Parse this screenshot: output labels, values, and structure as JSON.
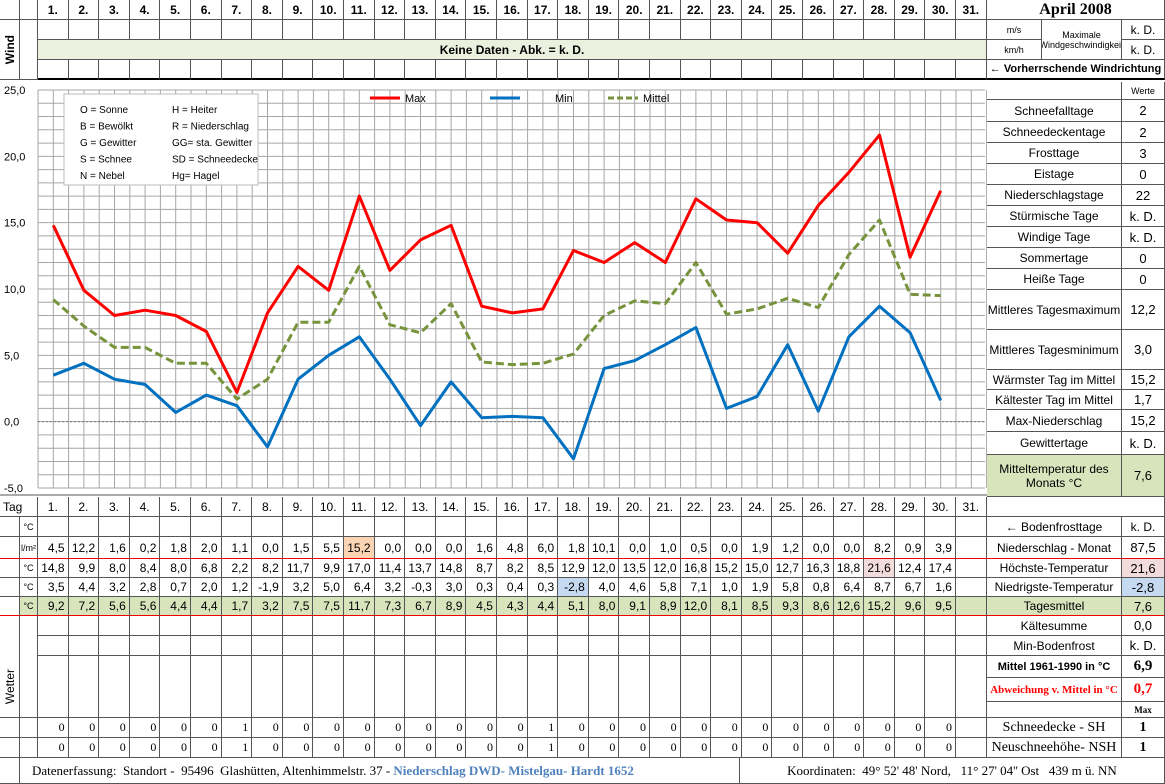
{
  "header": {
    "title": "April 2008",
    "days": [
      "1.",
      "2.",
      "3.",
      "4.",
      "5.",
      "6.",
      "7.",
      "8.",
      "9.",
      "10.",
      "11.",
      "12.",
      "13.",
      "14.",
      "15.",
      "16.",
      "17.",
      "18.",
      "19.",
      "20.",
      "21.",
      "22.",
      "23.",
      "24.",
      "25.",
      "26.",
      "27.",
      "28.",
      "29.",
      "30.",
      "31."
    ]
  },
  "wind": {
    "label": "Wind",
    "no_data": "Keine Daten - Abk. = k. D.",
    "unit_ms": "m/s",
    "unit_kmh": "km/h",
    "max_label": "Maximale Windgeschwindigkeit",
    "max_ms": "k. D.",
    "max_kmh": "k. D.",
    "direction_label": "← Vorherrschende Windrichtung"
  },
  "legend_box": {
    "left": [
      "O = Sonne",
      "B = Bewölkt",
      "G = Gewitter",
      "S = Schnee",
      "N = Nebel"
    ],
    "right": [
      "H = Heiter",
      "R = Niederschlag",
      "GG= sta. Gewitter",
      "SD = Schneedecke",
      "Hg= Hagel"
    ]
  },
  "chart_data": {
    "type": "line",
    "x": [
      1,
      2,
      3,
      4,
      5,
      6,
      7,
      8,
      9,
      10,
      11,
      12,
      13,
      14,
      15,
      16,
      17,
      18,
      19,
      20,
      21,
      22,
      23,
      24,
      25,
      26,
      27,
      28,
      29,
      30
    ],
    "ylim": [
      -5,
      25
    ],
    "yticks": [
      "25,0",
      "20,0",
      "15,0",
      "10,0",
      "5,0",
      "0,0",
      "-5,0"
    ],
    "ytick_values": [
      25,
      20,
      15,
      10,
      5,
      0,
      -5
    ],
    "legend_placement": "top",
    "series": [
      {
        "name": "Max",
        "color": "#ff0000",
        "dash": false,
        "values": [
          14.8,
          9.9,
          8.0,
          8.4,
          8.0,
          6.8,
          2.2,
          8.2,
          11.7,
          9.9,
          17.0,
          11.4,
          13.7,
          14.8,
          8.7,
          8.2,
          8.5,
          12.9,
          12.0,
          13.5,
          12.0,
          16.8,
          15.2,
          15.0,
          12.7,
          16.3,
          18.8,
          21.6,
          12.4,
          17.4
        ]
      },
      {
        "name": "Min",
        "color": "#0070c0",
        "dash": false,
        "values": [
          3.5,
          4.4,
          3.2,
          2.8,
          0.7,
          2.0,
          1.2,
          -1.9,
          3.2,
          5.0,
          6.4,
          3.2,
          -0.3,
          3.0,
          0.3,
          0.4,
          0.3,
          -2.8,
          4.0,
          4.6,
          5.8,
          7.1,
          1.0,
          1.9,
          5.8,
          0.8,
          6.4,
          8.7,
          6.7,
          1.6
        ]
      },
      {
        "name": "Mittel",
        "color": "#77933c",
        "dash": true,
        "values": [
          9.2,
          7.2,
          5.6,
          5.6,
          4.4,
          4.4,
          1.7,
          3.2,
          7.5,
          7.5,
          11.7,
          7.3,
          6.7,
          8.9,
          4.5,
          4.3,
          4.4,
          5.1,
          8.0,
          9.1,
          8.9,
          12.0,
          8.1,
          8.5,
          9.3,
          8.6,
          12.6,
          15.2,
          9.6,
          9.5
        ]
      }
    ]
  },
  "stats": {
    "values_header": "Werte",
    "rows": [
      {
        "label": "Schneefalltage",
        "value": "2"
      },
      {
        "label": "Schneedeckentage",
        "value": "2"
      },
      {
        "label": "Frosttage",
        "value": "3"
      },
      {
        "label": "Eistage",
        "value": "0"
      },
      {
        "label": "Niederschlagstage",
        "value": "22"
      },
      {
        "label": "Stürmische Tage",
        "value": "k. D."
      },
      {
        "label": "Windige Tage",
        "value": "k. D."
      },
      {
        "label": "Sommertage",
        "value": "0"
      },
      {
        "label": "Heiße Tage",
        "value": "0"
      },
      {
        "label": "Mittleres Tagesmaximum",
        "value": "12,2"
      },
      {
        "label": "Mittleres Tagesminimum",
        "value": "3,0"
      },
      {
        "label": "Wärmster Tag im Mittel",
        "value": "15,2"
      },
      {
        "label": "Kältester Tag im Mittel",
        "value": "1,7"
      },
      {
        "label": "Max-Niederschlag",
        "value": "15,2"
      },
      {
        "label": "Gewittertage",
        "value": "k. D."
      },
      {
        "label": "Mitteltemperatur des Monats °C",
        "value": "7,6"
      }
    ]
  },
  "table": {
    "tag_label": "Tag",
    "soil_unit": "°C",
    "rows": [
      {
        "unit": "l/m²",
        "label": "Niederschlag - Monat",
        "total": "87,5",
        "values": [
          "4,5",
          "12,2",
          "1,6",
          "0,2",
          "1,8",
          "2,0",
          "1,1",
          "0,0",
          "1,5",
          "5,5",
          "15,2",
          "0,0",
          "0,0",
          "0,0",
          "1,6",
          "4,8",
          "6,0",
          "1,8",
          "10,1",
          "0,0",
          "1,0",
          "0,5",
          "0,0",
          "1,9",
          "1,2",
          "0,0",
          "0,0",
          "8,2",
          "0,9",
          "3,9"
        ]
      },
      {
        "unit": "°C",
        "label": "Höchste-Temperatur",
        "total": "21,6",
        "values": [
          "14,8",
          "9,9",
          "8,0",
          "8,4",
          "8,0",
          "6,8",
          "2,2",
          "8,2",
          "11,7",
          "9,9",
          "17,0",
          "11,4",
          "13,7",
          "14,8",
          "8,7",
          "8,2",
          "8,5",
          "12,9",
          "12,0",
          "13,5",
          "12,0",
          "16,8",
          "15,2",
          "15,0",
          "12,7",
          "16,3",
          "18,8",
          "21,6",
          "12,4",
          "17,4"
        ]
      },
      {
        "unit": "°C",
        "label": "Niedrigste-Temperatur",
        "total": "-2,8",
        "values": [
          "3,5",
          "4,4",
          "3,2",
          "2,8",
          "0,7",
          "2,0",
          "1,2",
          "-1,9",
          "3,2",
          "5,0",
          "6,4",
          "3,2",
          "-0,3",
          "3,0",
          "0,3",
          "0,4",
          "0,3",
          "-2,8",
          "4,0",
          "4,6",
          "5,8",
          "7,1",
          "1,0",
          "1,9",
          "5,8",
          "0,8",
          "6,4",
          "8,7",
          "6,7",
          "1,6"
        ]
      },
      {
        "unit": "°C",
        "label": "Tagesmittel",
        "total": "7,6",
        "values": [
          "9,2",
          "7,2",
          "5,6",
          "5,6",
          "4,4",
          "4,4",
          "1,7",
          "3,2",
          "7,5",
          "7,5",
          "11,7",
          "7,3",
          "6,7",
          "8,9",
          "4,5",
          "4,3",
          "4,4",
          "5,1",
          "8,0",
          "9,1",
          "8,9",
          "12,0",
          "8,1",
          "8,5",
          "9,3",
          "8,6",
          "12,6",
          "15,2",
          "9,6",
          "9,5"
        ]
      }
    ],
    "bodenfrost": {
      "label": "← Bodenfrosttage",
      "value": "k. D."
    },
    "kaeltesumme": {
      "label": "Kältesumme",
      "value": "0,0"
    },
    "min_bodenfrost": {
      "label": "Min-Bodenfrost",
      "value": "k. D."
    },
    "mittel_1961": {
      "label": "Mittel 1961-1990 in °C",
      "value": "6,9"
    },
    "abweichung": {
      "label": "Abweichung v. Mittel in °C",
      "value": "0,7"
    },
    "max_header": "Max",
    "wetter_label": "Wetter",
    "snow_rows": [
      {
        "label": "Schneedecke -   SH",
        "max": "1",
        "values": [
          "0",
          "0",
          "0",
          "0",
          "0",
          "0",
          "1",
          "0",
          "0",
          "0",
          "0",
          "0",
          "0",
          "0",
          "0",
          "0",
          "1",
          "0",
          "0",
          "0",
          "0",
          "0",
          "0",
          "0",
          "0",
          "0",
          "0",
          "0",
          "0",
          "0"
        ]
      },
      {
        "label": "Neuschneehöhe- NSH",
        "max": "1",
        "values": [
          "0",
          "0",
          "0",
          "0",
          "0",
          "0",
          "1",
          "0",
          "0",
          "0",
          "0",
          "0",
          "0",
          "0",
          "0",
          "0",
          "1",
          "0",
          "0",
          "0",
          "0",
          "0",
          "0",
          "0",
          "0",
          "0",
          "0",
          "0",
          "0",
          "0"
        ]
      }
    ]
  },
  "footer": {
    "left": "Datenerfassung:  Standort -  95496  Glashütten, Altenhimmelstr. 37 - ",
    "source": "Niederschlag DWD- Mistelgau- Hardt 1652",
    "right": "Koordinaten:  49° 52' 48' Nord,   11° 27' 04'' Ost   439 m ü. NN"
  },
  "colors": {
    "max": "#ff0000",
    "min": "#0070c0",
    "mittel": "#77933c",
    "green": "#d8e4bc",
    "hot": "#fbd4b4",
    "warm": "#f2dcdb",
    "cold": "#c5d9f1",
    "link": "#4f81bd"
  }
}
